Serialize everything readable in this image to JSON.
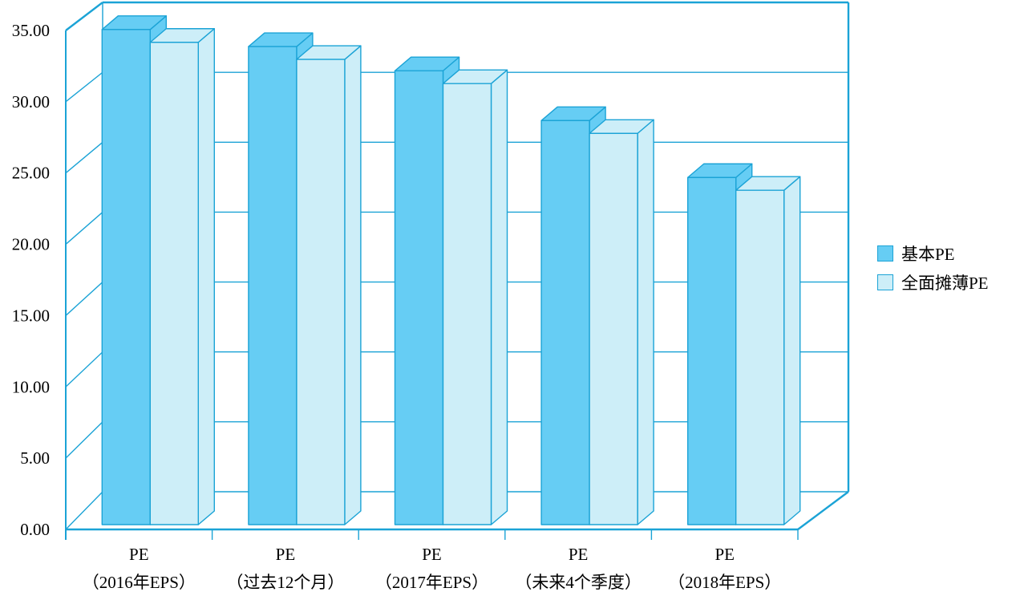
{
  "chart_data": {
    "type": "bar",
    "style": "3d-clustered-column",
    "categories": [
      [
        "PE",
        "（2016年EPS）"
      ],
      [
        "PE",
        "（过去12个月）"
      ],
      [
        "PE",
        "（2017年EPS）"
      ],
      [
        "PE",
        "（未来4个季度）"
      ],
      [
        "PE",
        "（2018年EPS）"
      ]
    ],
    "series": [
      {
        "name": "基本PE",
        "values": [
          34.8,
          33.6,
          31.9,
          28.4,
          24.4
        ],
        "color": "#66CDF4"
      },
      {
        "name": "全面摊薄PE",
        "values": [
          33.9,
          32.7,
          31.0,
          27.5,
          23.5
        ],
        "color": "#CDEEF8"
      }
    ],
    "ylim": [
      0,
      35
    ],
    "ytick_labels": [
      "0.00",
      "5.00",
      "10.00",
      "15.00",
      "20.00",
      "25.00",
      "30.00",
      "35.00"
    ],
    "grid": true,
    "legend": "right",
    "line_color": "#1BA3D6"
  }
}
